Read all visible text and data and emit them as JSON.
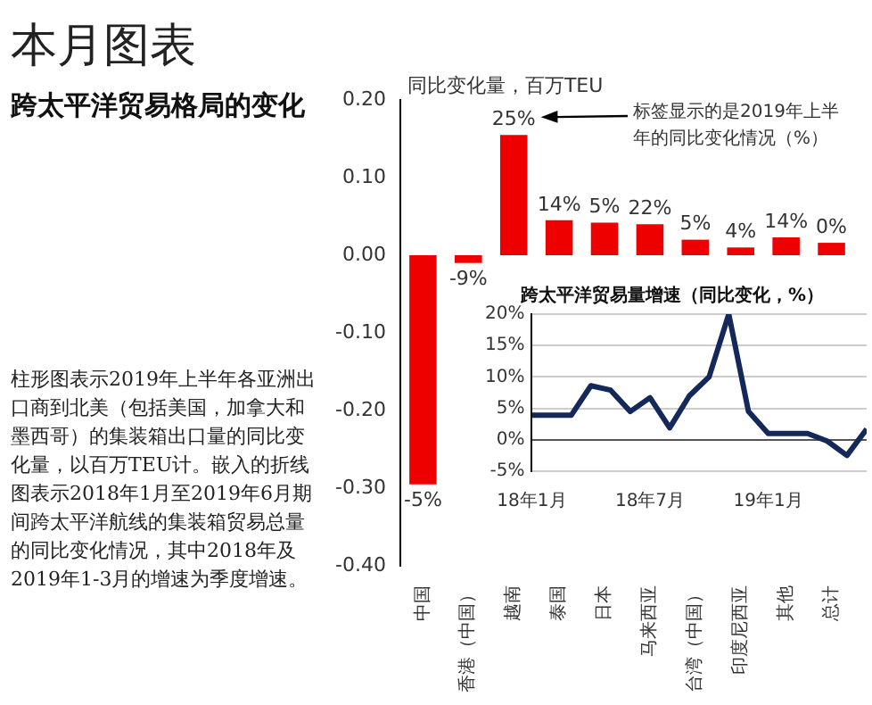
{
  "chart_data": [
    {
      "type": "bar",
      "title": "本月图表",
      "subtitle": "跨太平洋贸易格局的变化",
      "ylabel": "同比变化量，百万TEU",
      "categories": [
        "中国",
        "香港（中国）",
        "越南",
        "泰国",
        "日本",
        "马来西亚",
        "台湾（中国）",
        "印度尼西亚",
        "其他",
        "总计"
      ],
      "values": [
        -0.295,
        -0.01,
        0.155,
        0.045,
        0.042,
        0.04,
        0.02,
        0.01,
        0.023,
        0.016
      ],
      "color": "#ee0000",
      "ylim": [
        -0.4,
        0.2
      ],
      "yticks": [
        {
          "value": -0.4,
          "label": "-0.40"
        },
        {
          "value": -0.3,
          "label": "-0.30"
        },
        {
          "value": -0.2,
          "label": "-0.20"
        },
        {
          "value": -0.1,
          "label": "-0.10"
        },
        {
          "value": 0,
          "label": "0.00"
        },
        {
          "value": 0.1,
          "label": "0.10"
        },
        {
          "value": 0.2,
          "label": "0.20"
        }
      ],
      "annotations": [
        "标签显示的是2019年上半年的同比变化情况（%）",
        {
          "text": "-5%",
          "x": "中国",
          "y": -0.295
        },
        {
          "text": "-9%",
          "x": "香港（中国）",
          "y": -0.01
        },
        {
          "text": "25%",
          "x": "越南",
          "y": 0.155
        },
        {
          "text": "14%",
          "x": "泰国",
          "y": 0.045
        },
        {
          "text": "5%",
          "x": "日本",
          "y": 0.042
        },
        {
          "text": "22%",
          "x": "马来西亚",
          "y": 0.04
        },
        {
          "text": "5%",
          "x": "台湾（中国）",
          "y": 0.02
        },
        {
          "text": "4%",
          "x": "印度尼西亚",
          "y": 0.01
        },
        {
          "text": "14%",
          "x": "其他",
          "y": 0.023
        },
        {
          "text": "0%",
          "x": "总计",
          "y": 0.016
        },
        "柱形图表示2019年上半年各亚洲出口商到北美（包括美国，加拿大和墨西哥）的集装箱出口量的同比变化量，以百万TEU计。嵌入的折线图表示2018年1月至2019年6月期间跨太平洋航线的集装箱贸易总量的同比变化情况，其中2018年及2019年1-3月的增速为季度增速。"
      ]
    },
    {
      "type": "line",
      "title": "跨太平洋贸易量增速（同比变化，%）",
      "x": [
        "2018-01",
        "2018-02",
        "2018-03",
        "2018-04",
        "2018-05",
        "2018-06",
        "2018-07",
        "2018-08",
        "2018-09",
        "2018-10",
        "2018-11",
        "2018-12",
        "2019-01",
        "2019-02",
        "2019-03",
        "2019-04",
        "2019-05",
        "2019-06"
      ],
      "values": [
        3.9,
        3.9,
        3.9,
        8.6,
        7.9,
        4.5,
        6.7,
        1.9,
        7,
        10,
        20,
        4.5,
        1,
        1,
        1,
        -0.2,
        -2.5,
        1.7
      ],
      "color": "#14285a",
      "xlim": [
        "2018-01",
        "2019-06"
      ],
      "xticks": [
        {
          "value": "2018-01",
          "label": "18年1月"
        },
        {
          "value": "2018-07",
          "label": "18年7月"
        },
        {
          "value": "2019-01",
          "label": "19年1月"
        }
      ],
      "ylim": [
        -5,
        20
      ],
      "yticks": [
        {
          "value": -5,
          "label": "-5%"
        },
        {
          "value": 0,
          "label": "0%"
        },
        {
          "value": 5,
          "label": "5%"
        },
        {
          "value": 10,
          "label": "10%"
        },
        {
          "value": 15,
          "label": "15%"
        },
        {
          "value": 20,
          "label": "20%"
        }
      ],
      "grid": "y"
    }
  ]
}
